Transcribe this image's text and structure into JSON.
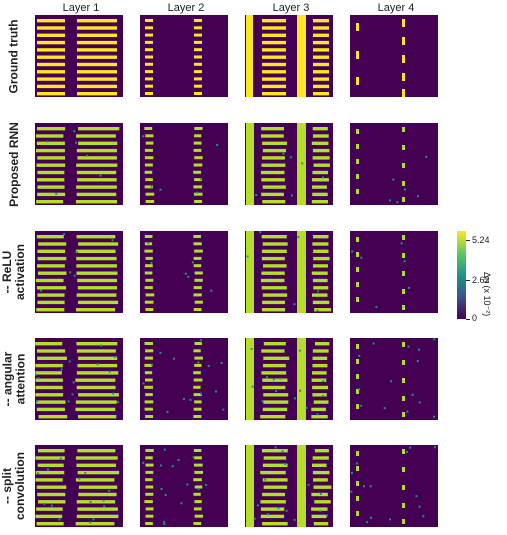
{
  "columns": [
    "Layer 1",
    "Layer 2",
    "Layer 3",
    "Layer 4"
  ],
  "rows": [
    {
      "label": "Ground truth"
    },
    {
      "label": "Proposed RNN"
    },
    {
      "label": "-- ReLU\nactivation"
    },
    {
      "label": "-- angular\nattention"
    },
    {
      "label": "-- split\nconvolution"
    }
  ],
  "colorbar": {
    "title": "Δn (x 10⁻²)",
    "ticks": [
      "5.24",
      "2.62",
      "0"
    ]
  },
  "colors": {
    "background": "#440154",
    "feature": "#fde725",
    "noisy": "#b5de2b",
    "edge": "#21918c"
  }
}
